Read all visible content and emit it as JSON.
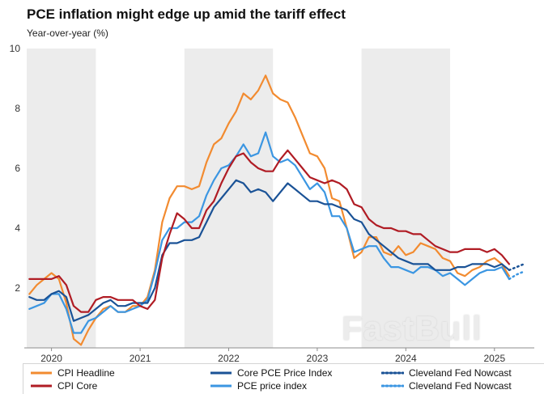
{
  "watermark": {
    "text": "FastBull"
  },
  "chart_data": {
    "type": "line",
    "title": "PCE inflation might edge up amid the tariff effect",
    "subtitle": "Year-over-year (%)",
    "ylim": [
      0,
      10
    ],
    "yticks": [
      2,
      4,
      6,
      8,
      10
    ],
    "xticks": [
      2020,
      2021,
      2022,
      2023,
      2024,
      2025
    ],
    "x_start": 2019.72,
    "x_end": 2025.45,
    "grid": false,
    "band_color": "#ececec",
    "axis_color": "#8c8c8c",
    "shaded_bands": [
      [
        2019.72,
        2020.5
      ],
      [
        2021.5,
        2022.5
      ],
      [
        2023.5,
        2024.5
      ]
    ],
    "start": {
      "year": 2019,
      "month": 10
    },
    "frequency": "monthly",
    "legend_order": [
      0,
      2,
      4,
      1,
      3,
      5
    ],
    "series": [
      {
        "name": "CPI Headline",
        "color": "#F28B30",
        "dash": false,
        "values": [
          1.8,
          2.1,
          2.3,
          2.5,
          2.3,
          1.5,
          0.3,
          0.1,
          0.6,
          1.0,
          1.3,
          1.4,
          1.2,
          1.2,
          1.4,
          1.4,
          1.7,
          2.6,
          4.2,
          5.0,
          5.4,
          5.4,
          5.3,
          5.4,
          6.2,
          6.8,
          7.0,
          7.5,
          7.9,
          8.5,
          8.3,
          8.6,
          9.1,
          8.5,
          8.3,
          8.2,
          7.7,
          7.1,
          6.5,
          6.4,
          6.0,
          5.0,
          4.9,
          4.0,
          3.0,
          3.2,
          3.7,
          3.7,
          3.2,
          3.1,
          3.4,
          3.1,
          3.2,
          3.5,
          3.4,
          3.3,
          3.0,
          2.9,
          2.5,
          2.4,
          2.6,
          2.7,
          2.9,
          3.0,
          2.8,
          2.4
        ]
      },
      {
        "name": "CPI Core",
        "color": "#B01C24",
        "dash": false,
        "values": [
          2.3,
          2.3,
          2.3,
          2.3,
          2.4,
          2.1,
          1.4,
          1.2,
          1.2,
          1.6,
          1.7,
          1.7,
          1.6,
          1.6,
          1.6,
          1.4,
          1.3,
          1.6,
          3.0,
          3.8,
          4.5,
          4.3,
          4.0,
          4.0,
          4.6,
          4.9,
          5.5,
          6.0,
          6.4,
          6.5,
          6.2,
          6.0,
          5.9,
          5.9,
          6.3,
          6.6,
          6.3,
          6.0,
          5.7,
          5.6,
          5.5,
          5.6,
          5.5,
          5.3,
          4.8,
          4.7,
          4.3,
          4.1,
          4.0,
          4.0,
          3.9,
          3.9,
          3.8,
          3.8,
          3.6,
          3.4,
          3.3,
          3.2,
          3.2,
          3.3,
          3.3,
          3.3,
          3.2,
          3.3,
          3.1,
          2.8
        ]
      },
      {
        "name": "Core PCE Price Index",
        "color": "#1A5296",
        "dash": false,
        "values": [
          1.7,
          1.6,
          1.6,
          1.8,
          1.9,
          1.7,
          0.9,
          1.0,
          1.1,
          1.3,
          1.5,
          1.6,
          1.4,
          1.4,
          1.5,
          1.5,
          1.5,
          2.0,
          3.1,
          3.5,
          3.5,
          3.6,
          3.6,
          3.7,
          4.2,
          4.7,
          5.0,
          5.3,
          5.6,
          5.5,
          5.2,
          5.3,
          5.2,
          4.9,
          5.2,
          5.5,
          5.3,
          5.1,
          4.9,
          4.9,
          4.8,
          4.8,
          4.7,
          4.6,
          4.3,
          4.2,
          3.8,
          3.6,
          3.4,
          3.2,
          3.0,
          2.9,
          2.8,
          2.8,
          2.8,
          2.6,
          2.6,
          2.6,
          2.7,
          2.7,
          2.8,
          2.8,
          2.8,
          2.7,
          2.8,
          2.6
        ]
      },
      {
        "name": "PCE price index",
        "color": "#3B96E2",
        "dash": false,
        "values": [
          1.3,
          1.4,
          1.5,
          1.8,
          1.8,
          1.3,
          0.5,
          0.5,
          0.9,
          1.0,
          1.2,
          1.4,
          1.2,
          1.2,
          1.3,
          1.4,
          1.6,
          2.5,
          3.6,
          4.0,
          4.0,
          4.2,
          4.2,
          4.4,
          5.1,
          5.6,
          6.0,
          6.1,
          6.4,
          6.8,
          6.4,
          6.5,
          7.2,
          6.4,
          6.2,
          6.3,
          6.1,
          5.7,
          5.3,
          5.5,
          5.2,
          4.4,
          4.4,
          4.0,
          3.2,
          3.3,
          3.4,
          3.4,
          3.0,
          2.7,
          2.7,
          2.6,
          2.5,
          2.7,
          2.7,
          2.6,
          2.4,
          2.5,
          2.3,
          2.1,
          2.3,
          2.5,
          2.6,
          2.6,
          2.7,
          2.3
        ]
      },
      {
        "name": "Cleveland Fed Nowcast",
        "color": "#1A5296",
        "dash": true,
        "start_index": 65,
        "values": [
          2.6,
          2.7,
          2.8
        ]
      },
      {
        "name": "Cleveland Fed Nowcast",
        "color": "#3B96E2",
        "dash": true,
        "start_index": 65,
        "values": [
          2.3,
          2.45,
          2.55
        ]
      }
    ]
  }
}
